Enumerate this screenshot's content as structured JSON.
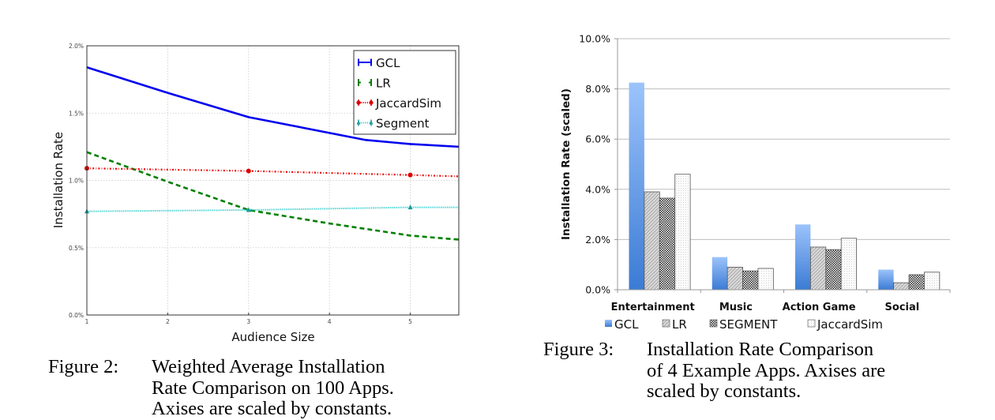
{
  "chart_data": [
    {
      "type": "line",
      "xlabel": "Audience Size",
      "ylabel": "Installation Rate",
      "xlim": [
        1,
        5.6
      ],
      "ylim": [
        0.0,
        2.0
      ],
      "xticks": [
        "1",
        "2",
        "3",
        "4",
        "5"
      ],
      "xtick_values": [
        1,
        2,
        3,
        4,
        5
      ],
      "yticks": [
        "0.0%",
        "0.5%",
        "1.0%",
        "1.5%",
        "2.0%"
      ],
      "ytick_values": [
        0.0,
        0.5,
        1.0,
        1.5,
        2.0
      ],
      "grid": true,
      "legend_position": "top-right",
      "series": [
        {
          "name": "GCL",
          "color": "#0000ee",
          "style": "solid",
          "marker": "none",
          "x": [
            1,
            2,
            3,
            4.45,
            5,
            5.6
          ],
          "y": [
            1.84,
            1.65,
            1.47,
            1.3,
            1.27,
            1.25
          ]
        },
        {
          "name": "LR",
          "color": "#008000",
          "style": "dashed",
          "marker": "none",
          "x": [
            1,
            2,
            3,
            4,
            5,
            5.6
          ],
          "y": [
            1.21,
            0.99,
            0.78,
            0.68,
            0.59,
            0.56
          ]
        },
        {
          "name": "JaccardSim",
          "color": "#ee0000",
          "style": "dashdot",
          "marker": "circle",
          "x": [
            1,
            3,
            5,
            5.6
          ],
          "y": [
            1.09,
            1.07,
            1.04,
            1.03
          ],
          "marker_x": [
            1,
            3,
            5
          ]
        },
        {
          "name": "Segment",
          "color": "#33cccc",
          "marker_color": "#1a9a9a",
          "style": "dotted",
          "marker": "triangle",
          "x": [
            1,
            3,
            5,
            5.6
          ],
          "y": [
            0.77,
            0.78,
            0.8,
            0.8
          ],
          "marker_x": [
            1,
            3,
            5
          ]
        }
      ]
    },
    {
      "type": "bar",
      "ylabel": "Installation Rate (scaled)",
      "ylim": [
        0.0,
        10.0
      ],
      "yticks": [
        "0.0%",
        "2.0%",
        "4.0%",
        "6.0%",
        "8.0%",
        "10.0%"
      ],
      "ytick_values": [
        0,
        2,
        4,
        6,
        8,
        10
      ],
      "grid": true,
      "legend_position": "bottom",
      "categories": [
        "Entertainment",
        "Music",
        "Action Game",
        "Social"
      ],
      "series": [
        {
          "name": "GCL",
          "pattern": "blue-gradient",
          "values": [
            8.25,
            1.3,
            2.6,
            0.8
          ]
        },
        {
          "name": "LR",
          "pattern": "diagonal-hatch",
          "values": [
            3.9,
            0.9,
            1.7,
            0.28
          ]
        },
        {
          "name": "SEGMENT",
          "pattern": "checker",
          "values": [
            3.65,
            0.75,
            1.6,
            0.6
          ]
        },
        {
          "name": "JaccardSim",
          "pattern": "dots",
          "values": [
            4.6,
            0.85,
            2.05,
            0.7
          ]
        }
      ]
    }
  ],
  "captions": {
    "fig2": {
      "label": "Figure 2:",
      "lines": [
        "Weighted Average Installation",
        "Rate Comparison on 100 Apps.",
        "Axises are scaled by constants."
      ]
    },
    "fig3": {
      "label": "Figure 3:",
      "lines": [
        "Installation Rate Comparison",
        "of 4 Example Apps. Axises are",
        "scaled by constants."
      ]
    }
  }
}
